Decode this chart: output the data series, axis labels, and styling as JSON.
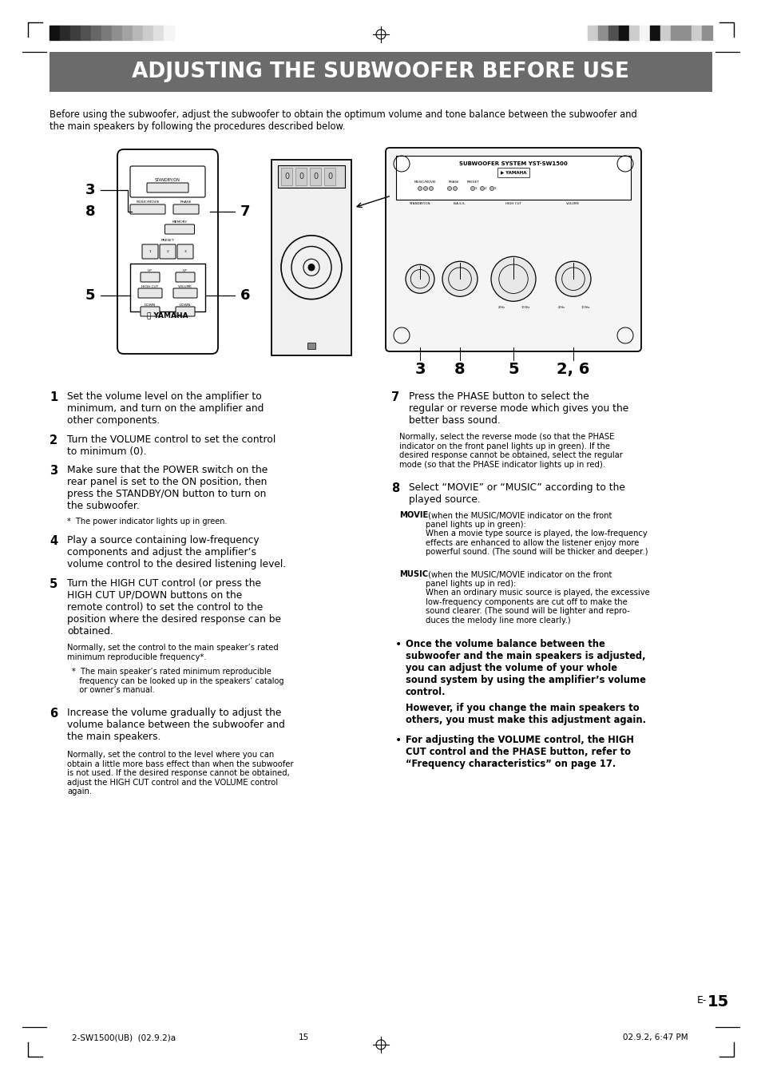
{
  "title": "ADJUSTING THE SUBWOOFER BEFORE USE",
  "title_bg": "#6b6b6b",
  "title_color": "#ffffff",
  "page_bg": "#ffffff",
  "intro_line1": "Before using the subwoofer, adjust the subwoofer to obtain the optimum volume and tone balance between the subwoofer and",
  "intro_line2": "the main speakers by following the procedures described below.",
  "footer_left": "2-SW1500(UB)  (02.9.2)a",
  "footer_center": "15",
  "footer_right": "02.9.2, 6:47 PM",
  "page_num_prefix": "E-",
  "page_num": "15",
  "bar_colors_left": [
    "#111111",
    "#2a2a2a",
    "#3d3d3d",
    "#515151",
    "#666666",
    "#7a7a7a",
    "#8f8f8f",
    "#a3a3a3",
    "#b8b8b8",
    "#cccccc",
    "#e0e0e0",
    "#f5f5f5"
  ],
  "bar_colors_right": [
    "#cccccc",
    "#8f8f8f",
    "#515151",
    "#111111",
    "#cccccc",
    "#f5f5f5",
    "#111111",
    "#cccccc",
    "#8f8f8f",
    "#8f8f8f",
    "#cccccc",
    "#8f8f8f"
  ]
}
